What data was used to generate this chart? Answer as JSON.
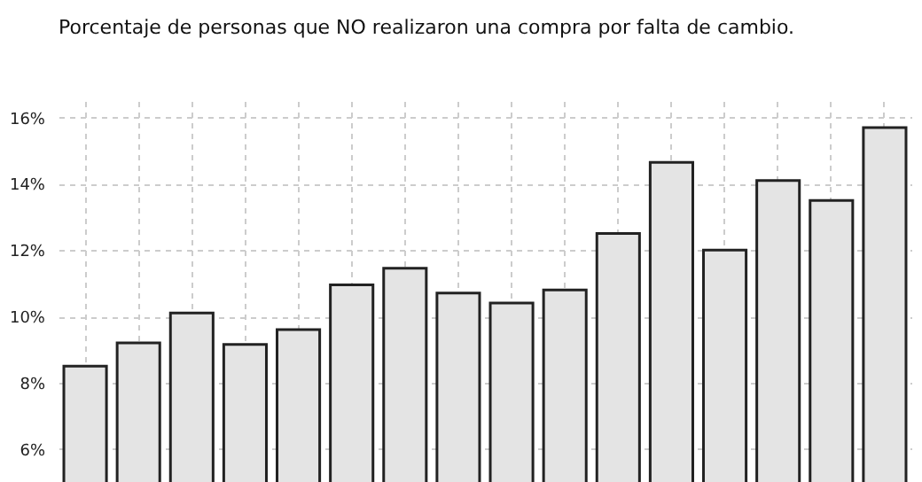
{
  "chart_data": {
    "type": "bar",
    "title": "Porcentaje de personas que NO realizaron una compra por falta de cambio.",
    "categories": [
      null,
      null,
      null,
      null,
      null,
      null,
      null,
      null,
      null,
      null,
      null,
      null,
      null,
      null,
      null,
      null
    ],
    "values": [
      8.5,
      9.2,
      10.1,
      9.15,
      9.6,
      10.95,
      11.45,
      10.7,
      10.4,
      10.8,
      12.5,
      14.65,
      12.0,
      14.1,
      13.5,
      15.7
    ],
    "color": "#e4e4e4",
    "ylim": [
      5,
      16.5
    ],
    "yticks": [
      {
        "value": 6,
        "label": "6%"
      },
      {
        "value": 8,
        "label": "8%"
      },
      {
        "value": 10,
        "label": "10%"
      },
      {
        "value": 12,
        "label": "12%"
      },
      {
        "value": 14,
        "label": "14%"
      },
      {
        "value": 16,
        "label": "16%"
      }
    ],
    "grid": true,
    "tick_labels": "y"
  }
}
